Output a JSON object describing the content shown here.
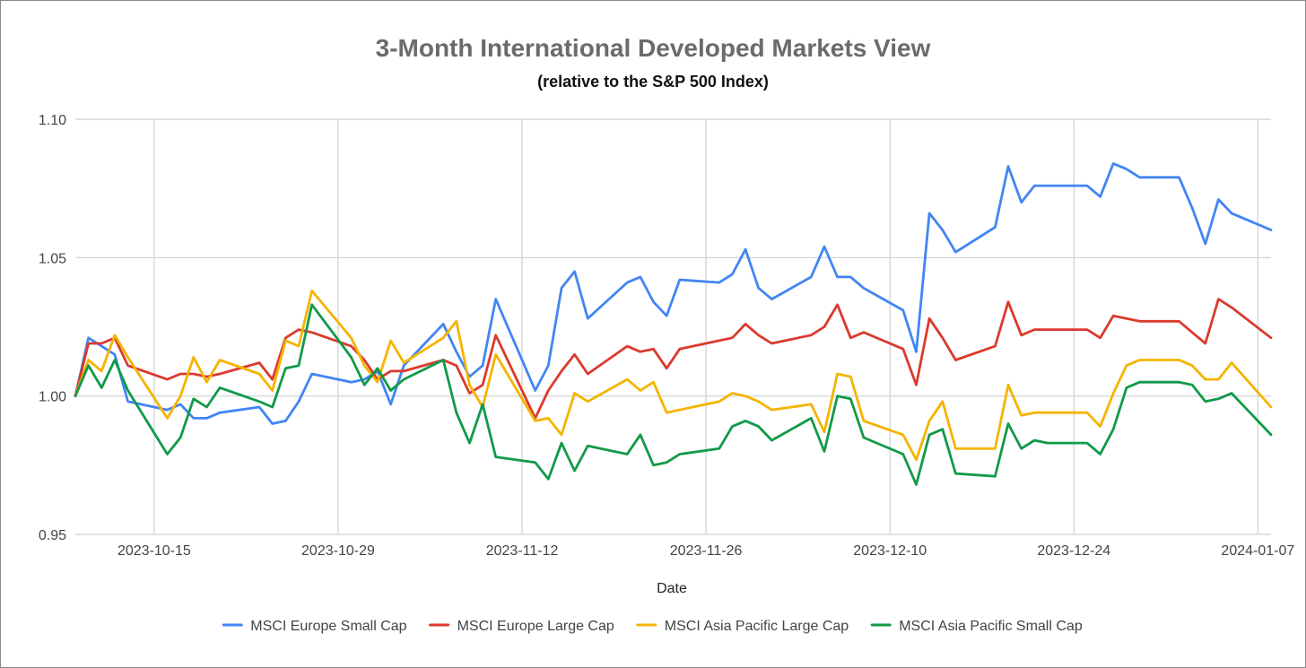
{
  "chart_data": {
    "type": "line",
    "title": "3-Month International Developed Markets View",
    "subtitle": "(relative to the S&P 500 Index)",
    "xlabel": "Date",
    "ylabel": "",
    "ylim": [
      0.95,
      1.1
    ],
    "xlim": [
      "2023-10-09",
      "2024-01-08"
    ],
    "y_ticks": [
      "0.95",
      "1.00",
      "1.05",
      "1.10"
    ],
    "y_tick_values": [
      0.95,
      1.0,
      1.05,
      1.1
    ],
    "x_ticks": [
      "2023-10-15",
      "2023-10-29",
      "2023-11-12",
      "2023-11-26",
      "2023-12-10",
      "2023-12-24",
      "2024-01-07"
    ],
    "grid": true,
    "legend_position": "bottom",
    "series": [
      {
        "name": "MSCI Europe Small Cap",
        "color": "#4285f4",
        "points": [
          [
            "2023-10-09",
            1.0
          ],
          [
            "2023-10-10",
            1.021
          ],
          [
            "2023-10-11",
            1.018
          ],
          [
            "2023-10-12",
            1.015
          ],
          [
            "2023-10-13",
            0.998
          ],
          [
            "2023-10-16",
            0.995
          ],
          [
            "2023-10-17",
            0.997
          ],
          [
            "2023-10-18",
            0.992
          ],
          [
            "2023-10-19",
            0.992
          ],
          [
            "2023-10-20",
            0.994
          ],
          [
            "2023-10-23",
            0.996
          ],
          [
            "2023-10-24",
            0.99
          ],
          [
            "2023-10-25",
            0.991
          ],
          [
            "2023-10-26",
            0.998
          ],
          [
            "2023-10-27",
            1.008
          ],
          [
            "2023-10-30",
            1.005
          ],
          [
            "2023-10-31",
            1.006
          ],
          [
            "2023-11-01",
            1.009
          ],
          [
            "2023-11-02",
            0.997
          ],
          [
            "2023-11-03",
            1.011
          ],
          [
            "2023-11-06",
            1.026
          ],
          [
            "2023-11-07",
            1.016
          ],
          [
            "2023-11-08",
            1.007
          ],
          [
            "2023-11-09",
            1.011
          ],
          [
            "2023-11-10",
            1.035
          ],
          [
            "2023-11-13",
            1.002
          ],
          [
            "2023-11-14",
            1.011
          ],
          [
            "2023-11-15",
            1.039
          ],
          [
            "2023-11-16",
            1.045
          ],
          [
            "2023-11-17",
            1.028
          ],
          [
            "2023-11-20",
            1.041
          ],
          [
            "2023-11-21",
            1.043
          ],
          [
            "2023-11-22",
            1.034
          ],
          [
            "2023-11-23",
            1.029
          ],
          [
            "2023-11-24",
            1.042
          ],
          [
            "2023-11-27",
            1.041
          ],
          [
            "2023-11-28",
            1.044
          ],
          [
            "2023-11-29",
            1.053
          ],
          [
            "2023-11-30",
            1.039
          ],
          [
            "2023-12-01",
            1.035
          ],
          [
            "2023-12-04",
            1.043
          ],
          [
            "2023-12-05",
            1.054
          ],
          [
            "2023-12-06",
            1.043
          ],
          [
            "2023-12-07",
            1.043
          ],
          [
            "2023-12-08",
            1.039
          ],
          [
            "2023-12-11",
            1.031
          ],
          [
            "2023-12-12",
            1.016
          ],
          [
            "2023-12-13",
            1.066
          ],
          [
            "2023-12-14",
            1.06
          ],
          [
            "2023-12-15",
            1.052
          ],
          [
            "2023-12-18",
            1.061
          ],
          [
            "2023-12-19",
            1.083
          ],
          [
            "2023-12-20",
            1.07
          ],
          [
            "2023-12-21",
            1.076
          ],
          [
            "2023-12-22",
            1.076
          ],
          [
            "2023-12-25",
            1.076
          ],
          [
            "2023-12-26",
            1.072
          ],
          [
            "2023-12-27",
            1.084
          ],
          [
            "2023-12-28",
            1.082
          ],
          [
            "2023-12-29",
            1.079
          ],
          [
            "2024-01-01",
            1.079
          ],
          [
            "2024-01-02",
            1.068
          ],
          [
            "2024-01-03",
            1.055
          ],
          [
            "2024-01-04",
            1.071
          ],
          [
            "2024-01-05",
            1.066
          ],
          [
            "2024-01-08",
            1.06
          ]
        ]
      },
      {
        "name": "MSCI Europe Large Cap",
        "color": "#db3a2e",
        "points": [
          [
            "2023-10-09",
            1.0
          ],
          [
            "2023-10-10",
            1.019
          ],
          [
            "2023-10-11",
            1.019
          ],
          [
            "2023-10-12",
            1.021
          ],
          [
            "2023-10-13",
            1.011
          ],
          [
            "2023-10-16",
            1.006
          ],
          [
            "2023-10-17",
            1.008
          ],
          [
            "2023-10-18",
            1.008
          ],
          [
            "2023-10-19",
            1.007
          ],
          [
            "2023-10-20",
            1.008
          ],
          [
            "2023-10-23",
            1.012
          ],
          [
            "2023-10-24",
            1.006
          ],
          [
            "2023-10-25",
            1.021
          ],
          [
            "2023-10-26",
            1.024
          ],
          [
            "2023-10-27",
            1.023
          ],
          [
            "2023-10-30",
            1.018
          ],
          [
            "2023-10-31",
            1.013
          ],
          [
            "2023-11-01",
            1.006
          ],
          [
            "2023-11-02",
            1.009
          ],
          [
            "2023-11-03",
            1.009
          ],
          [
            "2023-11-06",
            1.013
          ],
          [
            "2023-11-07",
            1.011
          ],
          [
            "2023-11-08",
            1.001
          ],
          [
            "2023-11-09",
            1.004
          ],
          [
            "2023-11-10",
            1.022
          ],
          [
            "2023-11-13",
            0.992
          ],
          [
            "2023-11-14",
            1.002
          ],
          [
            "2023-11-15",
            1.009
          ],
          [
            "2023-11-16",
            1.015
          ],
          [
            "2023-11-17",
            1.008
          ],
          [
            "2023-11-20",
            1.018
          ],
          [
            "2023-11-21",
            1.016
          ],
          [
            "2023-11-22",
            1.017
          ],
          [
            "2023-11-23",
            1.01
          ],
          [
            "2023-11-24",
            1.017
          ],
          [
            "2023-11-27",
            1.02
          ],
          [
            "2023-11-28",
            1.021
          ],
          [
            "2023-11-29",
            1.026
          ],
          [
            "2023-11-30",
            1.022
          ],
          [
            "2023-12-01",
            1.019
          ],
          [
            "2023-12-04",
            1.022
          ],
          [
            "2023-12-05",
            1.025
          ],
          [
            "2023-12-06",
            1.033
          ],
          [
            "2023-12-07",
            1.021
          ],
          [
            "2023-12-08",
            1.023
          ],
          [
            "2023-12-11",
            1.017
          ],
          [
            "2023-12-12",
            1.004
          ],
          [
            "2023-12-13",
            1.028
          ],
          [
            "2023-12-14",
            1.021
          ],
          [
            "2023-12-15",
            1.013
          ],
          [
            "2023-12-18",
            1.018
          ],
          [
            "2023-12-19",
            1.034
          ],
          [
            "2023-12-20",
            1.022
          ],
          [
            "2023-12-21",
            1.024
          ],
          [
            "2023-12-22",
            1.024
          ],
          [
            "2023-12-25",
            1.024
          ],
          [
            "2023-12-26",
            1.021
          ],
          [
            "2023-12-27",
            1.029
          ],
          [
            "2023-12-28",
            1.028
          ],
          [
            "2023-12-29",
            1.027
          ],
          [
            "2024-01-01",
            1.027
          ],
          [
            "2024-01-02",
            1.023
          ],
          [
            "2024-01-03",
            1.019
          ],
          [
            "2024-01-04",
            1.035
          ],
          [
            "2024-01-05",
            1.032
          ],
          [
            "2024-01-08",
            1.021
          ]
        ]
      },
      {
        "name": "MSCI Asia Pacific Large Cap",
        "color": "#f4b400",
        "points": [
          [
            "2023-10-09",
            1.0
          ],
          [
            "2023-10-10",
            1.013
          ],
          [
            "2023-10-11",
            1.009
          ],
          [
            "2023-10-12",
            1.022
          ],
          [
            "2023-10-13",
            1.014
          ],
          [
            "2023-10-16",
            0.992
          ],
          [
            "2023-10-17",
            1.0
          ],
          [
            "2023-10-18",
            1.014
          ],
          [
            "2023-10-19",
            1.005
          ],
          [
            "2023-10-20",
            1.013
          ],
          [
            "2023-10-23",
            1.008
          ],
          [
            "2023-10-24",
            1.002
          ],
          [
            "2023-10-25",
            1.02
          ],
          [
            "2023-10-26",
            1.018
          ],
          [
            "2023-10-27",
            1.038
          ],
          [
            "2023-10-30",
            1.021
          ],
          [
            "2023-10-31",
            1.011
          ],
          [
            "2023-11-01",
            1.005
          ],
          [
            "2023-11-02",
            1.02
          ],
          [
            "2023-11-03",
            1.012
          ],
          [
            "2023-11-06",
            1.021
          ],
          [
            "2023-11-07",
            1.027
          ],
          [
            "2023-11-08",
            1.004
          ],
          [
            "2023-11-09",
            0.996
          ],
          [
            "2023-11-10",
            1.015
          ],
          [
            "2023-11-13",
            0.991
          ],
          [
            "2023-11-14",
            0.992
          ],
          [
            "2023-11-15",
            0.986
          ],
          [
            "2023-11-16",
            1.001
          ],
          [
            "2023-11-17",
            0.998
          ],
          [
            "2023-11-20",
            1.006
          ],
          [
            "2023-11-21",
            1.002
          ],
          [
            "2023-11-22",
            1.005
          ],
          [
            "2023-11-23",
            0.994
          ],
          [
            "2023-11-24",
            0.995
          ],
          [
            "2023-11-27",
            0.998
          ],
          [
            "2023-11-28",
            1.001
          ],
          [
            "2023-11-29",
            1.0
          ],
          [
            "2023-11-30",
            0.998
          ],
          [
            "2023-12-01",
            0.995
          ],
          [
            "2023-12-04",
            0.997
          ],
          [
            "2023-12-05",
            0.987
          ],
          [
            "2023-12-06",
            1.008
          ],
          [
            "2023-12-07",
            1.007
          ],
          [
            "2023-12-08",
            0.991
          ],
          [
            "2023-12-11",
            0.986
          ],
          [
            "2023-12-12",
            0.977
          ],
          [
            "2023-12-13",
            0.991
          ],
          [
            "2023-12-14",
            0.998
          ],
          [
            "2023-12-15",
            0.981
          ],
          [
            "2023-12-18",
            0.981
          ],
          [
            "2023-12-19",
            1.004
          ],
          [
            "2023-12-20",
            0.993
          ],
          [
            "2023-12-21",
            0.994
          ],
          [
            "2023-12-22",
            0.994
          ],
          [
            "2023-12-25",
            0.994
          ],
          [
            "2023-12-26",
            0.989
          ],
          [
            "2023-12-27",
            1.001
          ],
          [
            "2023-12-28",
            1.011
          ],
          [
            "2023-12-29",
            1.013
          ],
          [
            "2024-01-01",
            1.013
          ],
          [
            "2024-01-02",
            1.011
          ],
          [
            "2024-01-03",
            1.006
          ],
          [
            "2024-01-04",
            1.006
          ],
          [
            "2024-01-05",
            1.012
          ],
          [
            "2024-01-08",
            0.996
          ]
        ]
      },
      {
        "name": "MSCI Asia Pacific Small Cap",
        "color": "#119a48",
        "points": [
          [
            "2023-10-09",
            1.0
          ],
          [
            "2023-10-10",
            1.011
          ],
          [
            "2023-10-11",
            1.003
          ],
          [
            "2023-10-12",
            1.013
          ],
          [
            "2023-10-13",
            1.002
          ],
          [
            "2023-10-16",
            0.979
          ],
          [
            "2023-10-17",
            0.985
          ],
          [
            "2023-10-18",
            0.999
          ],
          [
            "2023-10-19",
            0.996
          ],
          [
            "2023-10-20",
            1.003
          ],
          [
            "2023-10-23",
            0.998
          ],
          [
            "2023-10-24",
            0.996
          ],
          [
            "2023-10-25",
            1.01
          ],
          [
            "2023-10-26",
            1.011
          ],
          [
            "2023-10-27",
            1.033
          ],
          [
            "2023-10-30",
            1.014
          ],
          [
            "2023-10-31",
            1.004
          ],
          [
            "2023-11-01",
            1.01
          ],
          [
            "2023-11-02",
            1.002
          ],
          [
            "2023-11-03",
            1.006
          ],
          [
            "2023-11-06",
            1.013
          ],
          [
            "2023-11-07",
            0.994
          ],
          [
            "2023-11-08",
            0.983
          ],
          [
            "2023-11-09",
            0.997
          ],
          [
            "2023-11-10",
            0.978
          ],
          [
            "2023-11-13",
            0.976
          ],
          [
            "2023-11-14",
            0.97
          ],
          [
            "2023-11-15",
            0.983
          ],
          [
            "2023-11-16",
            0.973
          ],
          [
            "2023-11-17",
            0.982
          ],
          [
            "2023-11-20",
            0.979
          ],
          [
            "2023-11-21",
            0.986
          ],
          [
            "2023-11-22",
            0.975
          ],
          [
            "2023-11-23",
            0.976
          ],
          [
            "2023-11-24",
            0.979
          ],
          [
            "2023-11-27",
            0.981
          ],
          [
            "2023-11-28",
            0.989
          ],
          [
            "2023-11-29",
            0.991
          ],
          [
            "2023-11-30",
            0.989
          ],
          [
            "2023-12-01",
            0.984
          ],
          [
            "2023-12-04",
            0.992
          ],
          [
            "2023-12-05",
            0.98
          ],
          [
            "2023-12-06",
            1.0
          ],
          [
            "2023-12-07",
            0.999
          ],
          [
            "2023-12-08",
            0.985
          ],
          [
            "2023-12-11",
            0.979
          ],
          [
            "2023-12-12",
            0.968
          ],
          [
            "2023-12-13",
            0.986
          ],
          [
            "2023-12-14",
            0.988
          ],
          [
            "2023-12-15",
            0.972
          ],
          [
            "2023-12-18",
            0.971
          ],
          [
            "2023-12-19",
            0.99
          ],
          [
            "2023-12-20",
            0.981
          ],
          [
            "2023-12-21",
            0.984
          ],
          [
            "2023-12-22",
            0.983
          ],
          [
            "2023-12-25",
            0.983
          ],
          [
            "2023-12-26",
            0.979
          ],
          [
            "2023-12-27",
            0.988
          ],
          [
            "2023-12-28",
            1.003
          ],
          [
            "2023-12-29",
            1.005
          ],
          [
            "2024-01-01",
            1.005
          ],
          [
            "2024-01-02",
            1.004
          ],
          [
            "2024-01-03",
            0.998
          ],
          [
            "2024-01-04",
            0.999
          ],
          [
            "2024-01-05",
            1.001
          ],
          [
            "2024-01-08",
            0.986
          ]
        ]
      }
    ]
  }
}
